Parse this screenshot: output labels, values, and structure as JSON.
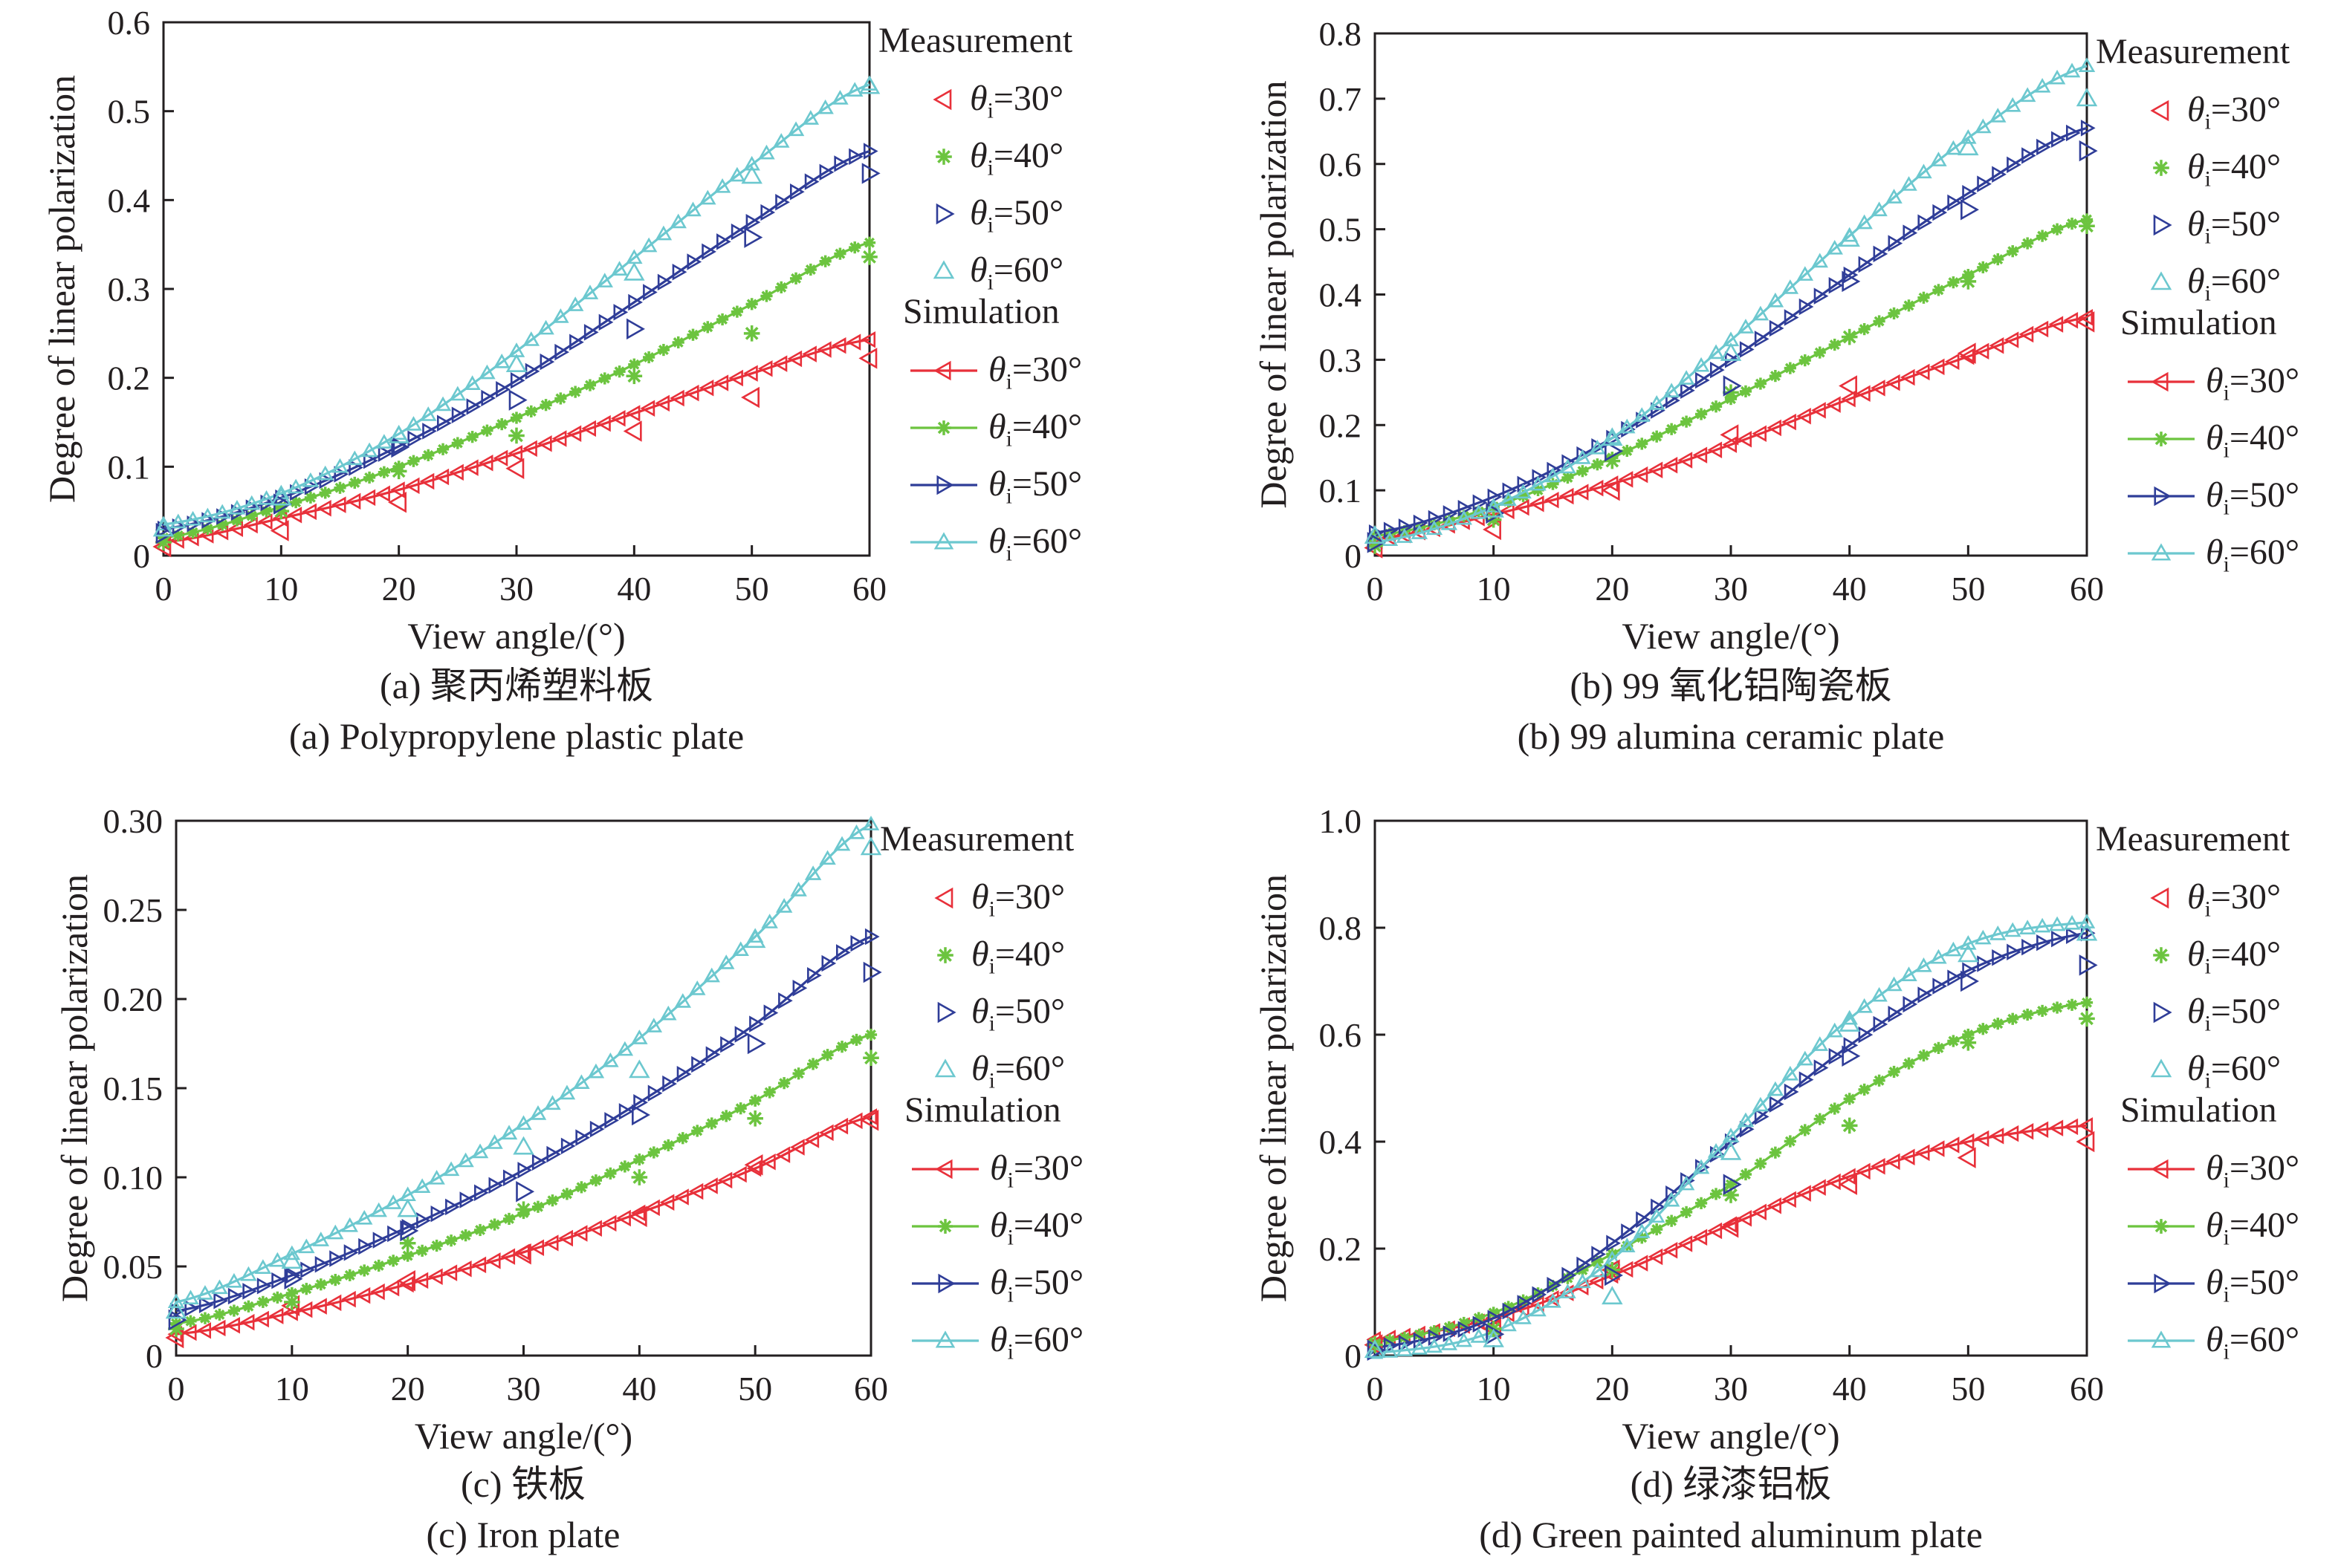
{
  "colors": {
    "theta30": "#e8303a",
    "theta40": "#6cc43f",
    "theta50": "#2f3d98",
    "theta60": "#6cc8cf",
    "axis": "#231f20"
  },
  "chart_data": [
    {
      "type": "line",
      "caption_cn": "(a) 聚丙烯塑料板",
      "caption_en": "(a) Polypropylene plastic plate",
      "xlabel": "View angle/(°)",
      "ylabel": "Degree of linear polarization",
      "xlim": [
        0,
        60
      ],
      "ylim": [
        0,
        0.6
      ],
      "xticks": [
        "0",
        "10",
        "20",
        "30",
        "40",
        "50",
        "60"
      ],
      "yticks": [
        "0",
        "0.1",
        "0.2",
        "0.3",
        "0.4",
        "0.5",
        "0.6"
      ],
      "legend": {
        "measurement_title": "Measurement",
        "simulation_title": "Simulation",
        "placement": "right"
      },
      "x": [
        0,
        10,
        20,
        30,
        40,
        50,
        60
      ],
      "measurement": [
        {
          "name": "θi=30°",
          "marker": "triangle-left",
          "values": [
            0.01,
            0.028,
            0.06,
            0.098,
            0.14,
            0.178,
            0.222
          ]
        },
        {
          "name": "θi=40°",
          "marker": "asterisk",
          "values": [
            0.015,
            0.05,
            0.095,
            0.135,
            0.202,
            0.25,
            0.336
          ]
        },
        {
          "name": "θi=50°",
          "marker": "triangle-right",
          "values": [
            0.025,
            0.058,
            0.122,
            0.175,
            0.255,
            0.358,
            0.43
          ]
        },
        {
          "name": "θi=60°",
          "marker": "triangle-up",
          "values": [
            0.03,
            0.065,
            0.135,
            0.215,
            0.318,
            0.427,
            0.528
          ]
        }
      ],
      "simulation": [
        {
          "name": "θi=30°",
          "marker": "triangle-left",
          "values": [
            0.015,
            0.042,
            0.074,
            0.115,
            0.16,
            0.205,
            0.243
          ]
        },
        {
          "name": "θi=40°",
          "marker": "asterisk",
          "values": [
            0.02,
            0.055,
            0.1,
            0.155,
            0.215,
            0.283,
            0.352
          ]
        },
        {
          "name": "θi=50°",
          "marker": "triangle-right",
          "values": [
            0.03,
            0.065,
            0.123,
            0.197,
            0.285,
            0.375,
            0.455
          ]
        },
        {
          "name": "θi=60°",
          "marker": "triangle-up",
          "values": [
            0.035,
            0.07,
            0.137,
            0.23,
            0.335,
            0.44,
            0.53
          ]
        }
      ]
    },
    {
      "type": "line",
      "caption_cn": "(b) 99 氧化铝陶瓷板",
      "caption_en": "(b) 99 alumina ceramic plate",
      "xlabel": "View angle/(°)",
      "ylabel": "Degree of linear polarization",
      "xlim": [
        0,
        60
      ],
      "ylim": [
        0,
        0.8
      ],
      "xticks": [
        "0",
        "10",
        "20",
        "30",
        "40",
        "50",
        "60"
      ],
      "yticks": [
        "0",
        "0.1",
        "0.2",
        "0.3",
        "0.4",
        "0.5",
        "0.6",
        "0.7",
        "0.8"
      ],
      "legend": {
        "measurement_title": "Measurement",
        "simulation_title": "Simulation",
        "placement": "right"
      },
      "x": [
        0,
        10,
        20,
        30,
        40,
        50,
        60
      ],
      "measurement": [
        {
          "name": "θi=30°",
          "marker": "triangle-left",
          "values": [
            0.012,
            0.04,
            0.1,
            0.185,
            0.26,
            0.31,
            0.358
          ]
        },
        {
          "name": "θi=40°",
          "marker": "asterisk",
          "values": [
            0.015,
            0.055,
            0.145,
            0.25,
            0.335,
            0.42,
            0.505
          ]
        },
        {
          "name": "θi=50°",
          "marker": "triangle-right",
          "values": [
            0.02,
            0.065,
            0.16,
            0.26,
            0.42,
            0.53,
            0.62
          ]
        },
        {
          "name": "θi=60°",
          "marker": "triangle-up",
          "values": [
            0.03,
            0.07,
            0.18,
            0.31,
            0.485,
            0.625,
            0.7
          ]
        }
      ],
      "simulation": [
        {
          "name": "θi=30°",
          "marker": "triangle-left",
          "values": [
            0.025,
            0.063,
            0.11,
            0.17,
            0.24,
            0.305,
            0.365
          ]
        },
        {
          "name": "θi=40°",
          "marker": "asterisk",
          "values": [
            0.03,
            0.075,
            0.15,
            0.24,
            0.335,
            0.43,
            0.515
          ]
        },
        {
          "name": "θi=50°",
          "marker": "triangle-right",
          "values": [
            0.035,
            0.09,
            0.18,
            0.3,
            0.43,
            0.555,
            0.655
          ]
        },
        {
          "name": "θi=60°",
          "marker": "triangle-up",
          "values": [
            0.02,
            0.075,
            0.18,
            0.33,
            0.49,
            0.64,
            0.75
          ]
        }
      ]
    },
    {
      "type": "line",
      "caption_cn": "(c) 铁板",
      "caption_en": "(c) Iron plate",
      "xlabel": "View angle/(°)",
      "ylabel": "Degree of linear polarization",
      "xlim": [
        0,
        60
      ],
      "ylim": [
        0,
        0.3
      ],
      "xticks": [
        "0",
        "10",
        "20",
        "30",
        "40",
        "50",
        "60"
      ],
      "yticks": [
        "0",
        "0.05",
        "0.10",
        "0.15",
        "0.20",
        "0.25",
        "0.30"
      ],
      "legend": {
        "measurement_title": "Measurement",
        "simulation_title": "Simulation",
        "placement": "right"
      },
      "x": [
        0,
        10,
        20,
        30,
        40,
        50,
        60
      ],
      "measurement": [
        {
          "name": "θi=30°",
          "marker": "triangle-left",
          "values": [
            0.01,
            0.028,
            0.042,
            0.057,
            0.078,
            0.107,
            0.132
          ]
        },
        {
          "name": "θi=40°",
          "marker": "asterisk",
          "values": [
            0.015,
            0.03,
            0.063,
            0.082,
            0.1,
            0.133,
            0.167
          ]
        },
        {
          "name": "θi=50°",
          "marker": "triangle-right",
          "values": [
            0.02,
            0.043,
            0.07,
            0.092,
            0.135,
            0.175,
            0.215
          ]
        },
        {
          "name": "θi=60°",
          "marker": "triangle-up",
          "values": [
            0.025,
            0.053,
            0.082,
            0.117,
            0.16,
            0.233,
            0.285
          ]
        }
      ],
      "simulation": [
        {
          "name": "θi=30°",
          "marker": "triangle-left",
          "values": [
            0.012,
            0.024,
            0.04,
            0.058,
            0.08,
            0.105,
            0.134
          ]
        },
        {
          "name": "θi=40°",
          "marker": "asterisk",
          "values": [
            0.018,
            0.035,
            0.056,
            0.08,
            0.11,
            0.143,
            0.18
          ]
        },
        {
          "name": "θi=50°",
          "marker": "triangle-right",
          "values": [
            0.025,
            0.045,
            0.072,
            0.104,
            0.142,
            0.186,
            0.235
          ]
        },
        {
          "name": "θi=60°",
          "marker": "triangle-up",
          "values": [
            0.03,
            0.057,
            0.09,
            0.13,
            0.178,
            0.235,
            0.298
          ]
        }
      ]
    },
    {
      "type": "line",
      "caption_cn": "(d) 绿漆铝板",
      "caption_en": "(d) Green painted aluminum plate",
      "xlabel": "View angle/(°)",
      "ylabel": "Degree of linear polarization",
      "xlim": [
        0,
        60
      ],
      "ylim": [
        0,
        1.0
      ],
      "xticks": [
        "0",
        "10",
        "20",
        "30",
        "40",
        "50",
        "60"
      ],
      "yticks": [
        "0",
        "0.2",
        "0.4",
        "0.6",
        "0.8",
        "1.0"
      ],
      "legend": {
        "measurement_title": "Measurement",
        "simulation_title": "Simulation",
        "placement": "right"
      },
      "x": [
        0,
        10,
        20,
        30,
        40,
        50,
        60
      ],
      "measurement": [
        {
          "name": "θi=30°",
          "marker": "triangle-left",
          "values": [
            0.02,
            0.05,
            0.16,
            0.24,
            0.32,
            0.37,
            0.4
          ]
        },
        {
          "name": "θi=40°",
          "marker": "asterisk",
          "values": [
            0.02,
            0.05,
            0.16,
            0.3,
            0.43,
            0.585,
            0.63
          ]
        },
        {
          "name": "θi=50°",
          "marker": "triangle-right",
          "values": [
            0.01,
            0.04,
            0.15,
            0.32,
            0.56,
            0.7,
            0.73
          ]
        },
        {
          "name": "θi=60°",
          "marker": "triangle-up",
          "values": [
            0.01,
            0.03,
            0.11,
            0.38,
            0.62,
            0.75,
            0.79
          ]
        }
      ],
      "simulation": [
        {
          "name": "θi=30°",
          "marker": "triangle-left",
          "values": [
            0.03,
            0.07,
            0.15,
            0.245,
            0.335,
            0.4,
            0.43
          ]
        },
        {
          "name": "θi=40°",
          "marker": "asterisk",
          "values": [
            0.025,
            0.08,
            0.19,
            0.32,
            0.48,
            0.6,
            0.66
          ]
        },
        {
          "name": "θi=50°",
          "marker": "triangle-right",
          "values": [
            0.015,
            0.07,
            0.21,
            0.4,
            0.58,
            0.72,
            0.79
          ]
        },
        {
          "name": "θi=60°",
          "marker": "triangle-up",
          "values": [
            0.005,
            0.045,
            0.18,
            0.41,
            0.63,
            0.77,
            0.81
          ]
        }
      ]
    }
  ]
}
